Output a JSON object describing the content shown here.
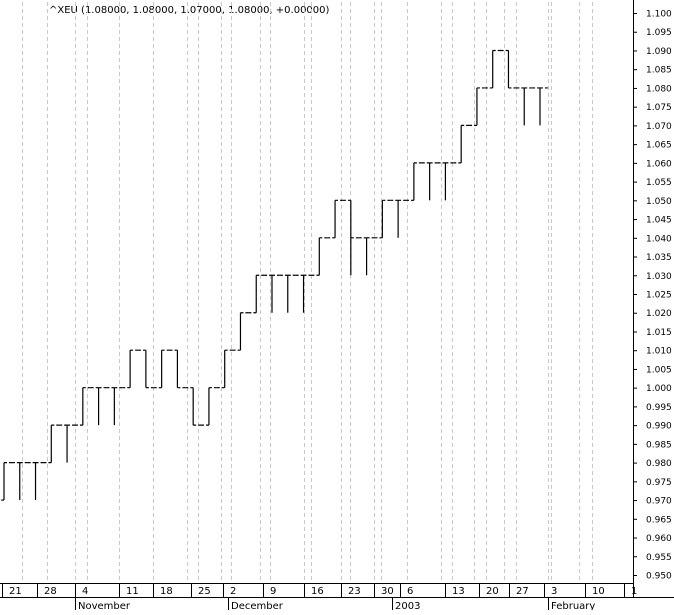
{
  "chart_data": {
    "type": "line",
    "title": "^XEU (1.08000, 1.08000, 1.07000, 1.08000, +0.00000)",
    "xlabel": "",
    "ylabel": "",
    "ylim": [
      0.945,
      1.102
    ],
    "y_ticks": [
      "1.100",
      "1.095",
      "1.090",
      "1.085",
      "1.080",
      "1.075",
      "1.070",
      "1.065",
      "1.060",
      "1.055",
      "1.050",
      "1.045",
      "1.040",
      "1.035",
      "1.030",
      "1.025",
      "1.020",
      "1.015",
      "1.010",
      "1.005",
      "1.000",
      "0.995",
      "0.990",
      "0.985",
      "0.980",
      "0.975",
      "0.970",
      "0.965",
      "0.960",
      "0.955",
      "0.950"
    ],
    "x_ticks": [
      "21",
      "28",
      "4",
      "11",
      "18",
      "25",
      "2",
      "9",
      "16",
      "23",
      "30",
      "6",
      "13",
      "20",
      "27",
      "3",
      "10",
      "1"
    ],
    "month_labels": [
      "November",
      "December",
      "2003",
      "February"
    ],
    "grid": true,
    "series": [
      {
        "values": [
          {
            "o": 0.97,
            "h": 0.98,
            "l": 0.97,
            "c": 0.98
          },
          {
            "o": 0.98,
            "h": 0.98,
            "l": 0.97,
            "c": 0.98
          },
          {
            "o": 0.98,
            "h": 0.98,
            "l": 0.97,
            "c": 0.98
          },
          {
            "o": 0.98,
            "h": 0.99,
            "l": 0.98,
            "c": 0.99
          },
          {
            "o": 0.99,
            "h": 0.99,
            "l": 0.98,
            "c": 0.99
          },
          {
            "o": 0.99,
            "h": 1.0,
            "l": 0.99,
            "c": 1.0
          },
          {
            "o": 1.0,
            "h": 1.0,
            "l": 0.99,
            "c": 1.0
          },
          {
            "o": 1.0,
            "h": 1.0,
            "l": 0.99,
            "c": 1.0
          },
          {
            "o": 1.0,
            "h": 1.01,
            "l": 1.0,
            "c": 1.01
          },
          {
            "o": 1.01,
            "h": 1.01,
            "l": 1.0,
            "c": 1.0
          },
          {
            "o": 1.0,
            "h": 1.01,
            "l": 1.0,
            "c": 1.01
          },
          {
            "o": 1.01,
            "h": 1.01,
            "l": 1.0,
            "c": 1.0
          },
          {
            "o": 1.0,
            "h": 1.0,
            "l": 0.99,
            "c": 0.99
          },
          {
            "o": 0.99,
            "h": 1.0,
            "l": 0.99,
            "c": 1.0
          },
          {
            "o": 1.0,
            "h": 1.01,
            "l": 1.0,
            "c": 1.01
          },
          {
            "o": 1.01,
            "h": 1.02,
            "l": 1.01,
            "c": 1.02
          },
          {
            "o": 1.02,
            "h": 1.03,
            "l": 1.02,
            "c": 1.03
          },
          {
            "o": 1.03,
            "h": 1.03,
            "l": 1.02,
            "c": 1.03
          },
          {
            "o": 1.03,
            "h": 1.03,
            "l": 1.02,
            "c": 1.03
          },
          {
            "o": 1.03,
            "h": 1.03,
            "l": 1.02,
            "c": 1.03
          },
          {
            "o": 1.03,
            "h": 1.04,
            "l": 1.03,
            "c": 1.04
          },
          {
            "o": 1.04,
            "h": 1.05,
            "l": 1.04,
            "c": 1.05
          },
          {
            "o": 1.05,
            "h": 1.05,
            "l": 1.03,
            "c": 1.04
          },
          {
            "o": 1.04,
            "h": 1.04,
            "l": 1.03,
            "c": 1.04
          },
          {
            "o": 1.04,
            "h": 1.05,
            "l": 1.04,
            "c": 1.05
          },
          {
            "o": 1.05,
            "h": 1.05,
            "l": 1.04,
            "c": 1.05
          },
          {
            "o": 1.05,
            "h": 1.06,
            "l": 1.05,
            "c": 1.06
          },
          {
            "o": 1.06,
            "h": 1.06,
            "l": 1.05,
            "c": 1.06
          },
          {
            "o": 1.06,
            "h": 1.06,
            "l": 1.05,
            "c": 1.06
          },
          {
            "o": 1.06,
            "h": 1.07,
            "l": 1.06,
            "c": 1.07
          },
          {
            "o": 1.07,
            "h": 1.08,
            "l": 1.07,
            "c": 1.08
          },
          {
            "o": 1.08,
            "h": 1.09,
            "l": 1.08,
            "c": 1.09
          },
          {
            "o": 1.09,
            "h": 1.09,
            "l": 1.08,
            "c": 1.08
          },
          {
            "o": 1.08,
            "h": 1.08,
            "l": 1.07,
            "c": 1.08
          },
          {
            "o": 1.08,
            "h": 1.08,
            "l": 1.07,
            "c": 1.08
          }
        ]
      }
    ]
  }
}
